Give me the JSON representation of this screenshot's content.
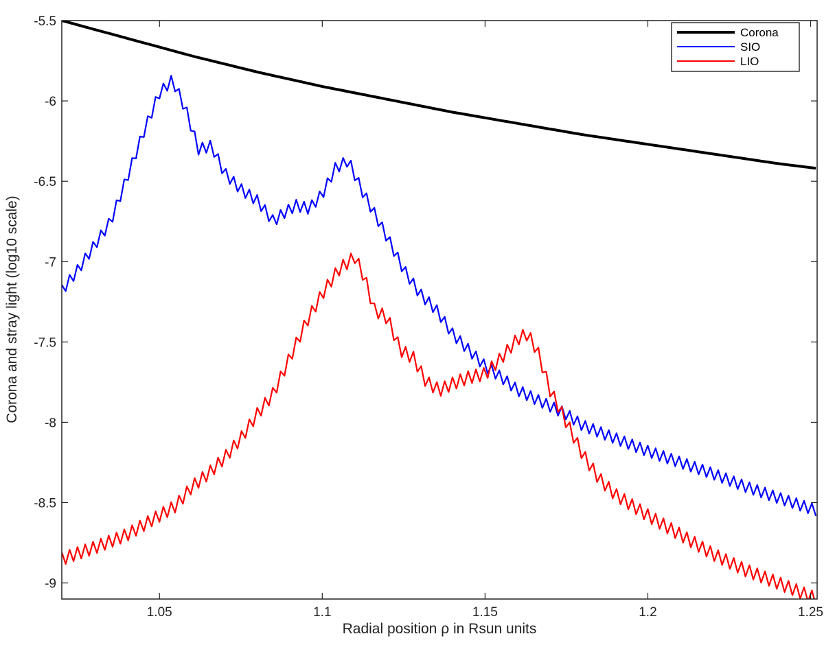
{
  "chart_data": {
    "type": "line",
    "title": "",
    "xlabel": "Radial position ρ in Rsun units",
    "ylabel": "Corona and stray light (log10 scale)",
    "xlim": [
      1.02,
      1.252
    ],
    "ylim": [
      -9.1,
      -5.5
    ],
    "xticks": [
      1.05,
      1.1,
      1.15,
      1.2,
      1.25
    ],
    "yticks": [
      -5.5,
      -6,
      -6.5,
      -7,
      -7.5,
      -8,
      -8.5,
      -9
    ],
    "xtick_labels": [
      "1.05",
      "1.1",
      "1.15",
      "1.2",
      "1.25"
    ],
    "ytick_labels": [
      "-5.5",
      "-6",
      "-6.5",
      "-7",
      "-7.5",
      "-8",
      "-8.5",
      "-9"
    ],
    "grid": false,
    "legend_position": "top-right",
    "series": [
      {
        "name": "Corona",
        "color": "#000000",
        "x": [
          1.02,
          1.04,
          1.06,
          1.08,
          1.1,
          1.12,
          1.14,
          1.16,
          1.18,
          1.2,
          1.22,
          1.24,
          1.252
        ],
        "y": [
          -5.5,
          -5.61,
          -5.72,
          -5.82,
          -5.91,
          -5.99,
          -6.07,
          -6.14,
          -6.21,
          -6.27,
          -6.33,
          -6.39,
          -6.42
        ]
      },
      {
        "name": "SIO",
        "color": "#0000ff",
        "x": [
          1.02,
          1.025,
          1.03,
          1.035,
          1.04,
          1.045,
          1.05,
          1.054,
          1.058,
          1.062,
          1.066,
          1.07,
          1.075,
          1.08,
          1.085,
          1.088,
          1.092,
          1.096,
          1.1,
          1.104,
          1.108,
          1.112,
          1.116,
          1.12,
          1.125,
          1.13,
          1.135,
          1.14,
          1.145,
          1.15,
          1.155,
          1.16,
          1.165,
          1.17,
          1.175,
          1.18,
          1.19,
          1.2,
          1.21,
          1.22,
          1.23,
          1.24,
          1.252
        ],
        "y": [
          -7.18,
          -7.05,
          -6.9,
          -6.75,
          -6.48,
          -6.2,
          -5.95,
          -5.87,
          -6.05,
          -6.3,
          -6.28,
          -6.45,
          -6.55,
          -6.62,
          -6.75,
          -6.7,
          -6.65,
          -6.67,
          -6.58,
          -6.42,
          -6.37,
          -6.55,
          -6.7,
          -6.85,
          -7.05,
          -7.2,
          -7.3,
          -7.45,
          -7.55,
          -7.65,
          -7.72,
          -7.8,
          -7.85,
          -7.9,
          -7.95,
          -8.02,
          -8.1,
          -8.18,
          -8.25,
          -8.32,
          -8.4,
          -8.47,
          -8.55
        ]
      },
      {
        "name": "LIO",
        "color": "#ff0000",
        "x": [
          1.02,
          1.03,
          1.04,
          1.05,
          1.055,
          1.06,
          1.065,
          1.07,
          1.075,
          1.08,
          1.085,
          1.09,
          1.095,
          1.1,
          1.105,
          1.11,
          1.113,
          1.116,
          1.12,
          1.124,
          1.128,
          1.132,
          1.136,
          1.14,
          1.145,
          1.15,
          1.155,
          1.16,
          1.163,
          1.166,
          1.17,
          1.175,
          1.18,
          1.185,
          1.19,
          1.2,
          1.21,
          1.22,
          1.23,
          1.24,
          1.252
        ],
        "y": [
          -8.85,
          -8.78,
          -8.7,
          -8.58,
          -8.52,
          -8.4,
          -8.32,
          -8.22,
          -8.1,
          -7.95,
          -7.82,
          -7.6,
          -7.38,
          -7.2,
          -7.05,
          -6.97,
          -7.1,
          -7.3,
          -7.35,
          -7.55,
          -7.6,
          -7.75,
          -7.8,
          -7.76,
          -7.72,
          -7.7,
          -7.6,
          -7.48,
          -7.45,
          -7.55,
          -7.8,
          -8.0,
          -8.2,
          -8.35,
          -8.45,
          -8.58,
          -8.7,
          -8.82,
          -8.92,
          -9.0,
          -9.1
        ]
      }
    ]
  }
}
